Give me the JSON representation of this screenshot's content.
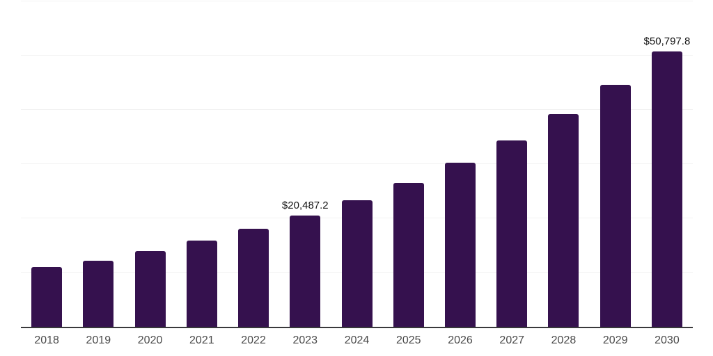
{
  "chart_data": {
    "type": "bar",
    "title": "",
    "xlabel": "",
    "ylabel": "",
    "categories": [
      "2018",
      "2019",
      "2020",
      "2021",
      "2022",
      "2023",
      "2024",
      "2025",
      "2026",
      "2027",
      "2028",
      "2029",
      "2030"
    ],
    "values": [
      11050,
      12200,
      14000,
      15930,
      18100,
      20487.2,
      23325,
      26556,
      30234,
      34422,
      39191,
      44619,
      50797.8
    ],
    "data_labels": [
      "",
      "",
      "",
      "",
      "",
      "$20,487.2",
      "",
      "",
      "",
      "",
      "",
      "",
      "$50,797.8"
    ],
    "ylim": [
      0,
      60000
    ],
    "gridline_step": 10000,
    "grid": true,
    "legend_position": "none",
    "y_axis_tick_labels_visible": false
  },
  "style": {
    "background_color": "#ffffff",
    "bar_color": "#35114E",
    "grid_color": "#f2f2f2",
    "axis_color": "#39393b",
    "value_label_color": "#141414",
    "tick_label_color": "#4a4a4a"
  }
}
